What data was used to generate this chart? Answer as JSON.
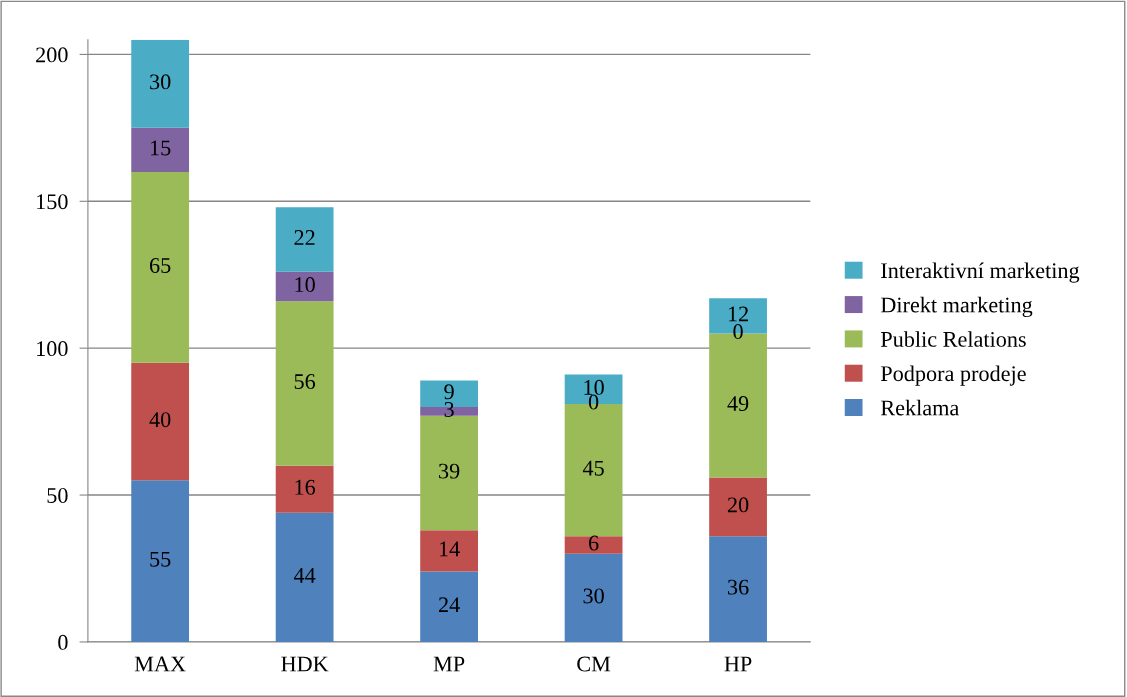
{
  "chart_data": {
    "type": "bar",
    "stacked": true,
    "categories": [
      "MAX",
      "HDK",
      "MP",
      "CM",
      "HP"
    ],
    "series": [
      {
        "name": "Reklama",
        "color": "#4f81bd",
        "values": [
          55,
          44,
          24,
          30,
          36
        ]
      },
      {
        "name": "Podpora prodeje",
        "color": "#c0504d",
        "values": [
          40,
          16,
          14,
          6,
          20
        ]
      },
      {
        "name": "Public Relations",
        "color": "#9bbb59",
        "values": [
          65,
          56,
          39,
          45,
          49
        ]
      },
      {
        "name": "Direkt marketing",
        "color": "#8064a2",
        "values": [
          15,
          10,
          3,
          0,
          0
        ]
      },
      {
        "name": "Interaktivní marketing",
        "color": "#4bacc6",
        "values": [
          30,
          22,
          9,
          10,
          12
        ]
      }
    ],
    "ylim": [
      0,
      205
    ],
    "yticks": [
      0,
      50,
      100,
      150,
      200
    ],
    "grid": "y",
    "legend": "right",
    "data_labels": true
  }
}
